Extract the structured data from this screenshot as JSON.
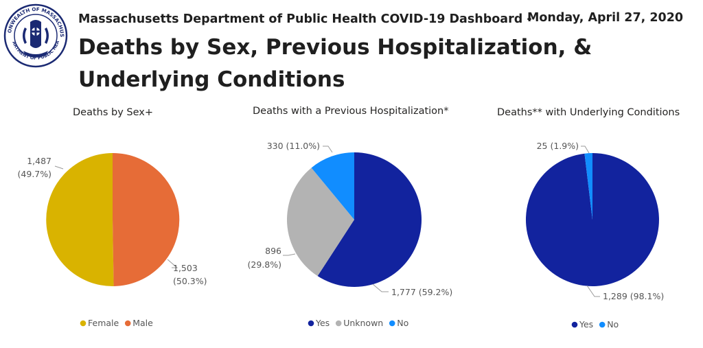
{
  "seal": {
    "ring_text": "COMMONWEALTH OF MASSACHUSETTS",
    "bottom_text": "DEPARTMENT OF PUBLIC HEALTH"
  },
  "header": {
    "subtitle": "Massachusetts Department of Public Health COVID-19 Dashboard -",
    "date": "Monday, April 27, 2020",
    "title": "Deaths by Sex, Previous Hospitalization, & Underlying Conditions"
  },
  "colors": {
    "female": "#D9B300",
    "male": "#E66C37",
    "yes": "#12239E",
    "unknown": "#B3B3B3",
    "no": "#118DFF"
  },
  "chart_data": [
    {
      "type": "pie",
      "title": "Deaths by Sex+",
      "slices": [
        {
          "name": "Female",
          "value": 1503,
          "label": "1,503",
          "pct": "(50.3%)",
          "color": "#D9B300"
        },
        {
          "name": "Male",
          "value": 1487,
          "label": "1,487",
          "pct": "(49.7%)",
          "color": "#E66C37"
        }
      ],
      "legend": [
        "Female",
        "Male"
      ],
      "legend_position": "bottom"
    },
    {
      "type": "pie",
      "title": "Deaths with a Previous Hospitalization*",
      "slices": [
        {
          "name": "Yes",
          "value": 1777,
          "label": "1,777 (59.2%)",
          "color": "#12239E"
        },
        {
          "name": "Unknown",
          "value": 896,
          "label": "896",
          "pct": "(29.8%)",
          "color": "#B3B3B3"
        },
        {
          "name": "No",
          "value": 330,
          "label": "330 (11.0%)",
          "color": "#118DFF"
        }
      ],
      "legend": [
        "Yes",
        "Unknown",
        "No"
      ],
      "legend_position": "bottom"
    },
    {
      "type": "pie",
      "title": "Deaths** with Underlying Conditions",
      "slices": [
        {
          "name": "Yes",
          "value": 1289,
          "label": "1,289 (98.1%)",
          "color": "#12239E"
        },
        {
          "name": "No",
          "value": 25,
          "label": "25 (1.9%)",
          "color": "#118DFF"
        }
      ],
      "legend": [
        "Yes",
        "No"
      ],
      "legend_position": "bottom"
    }
  ]
}
